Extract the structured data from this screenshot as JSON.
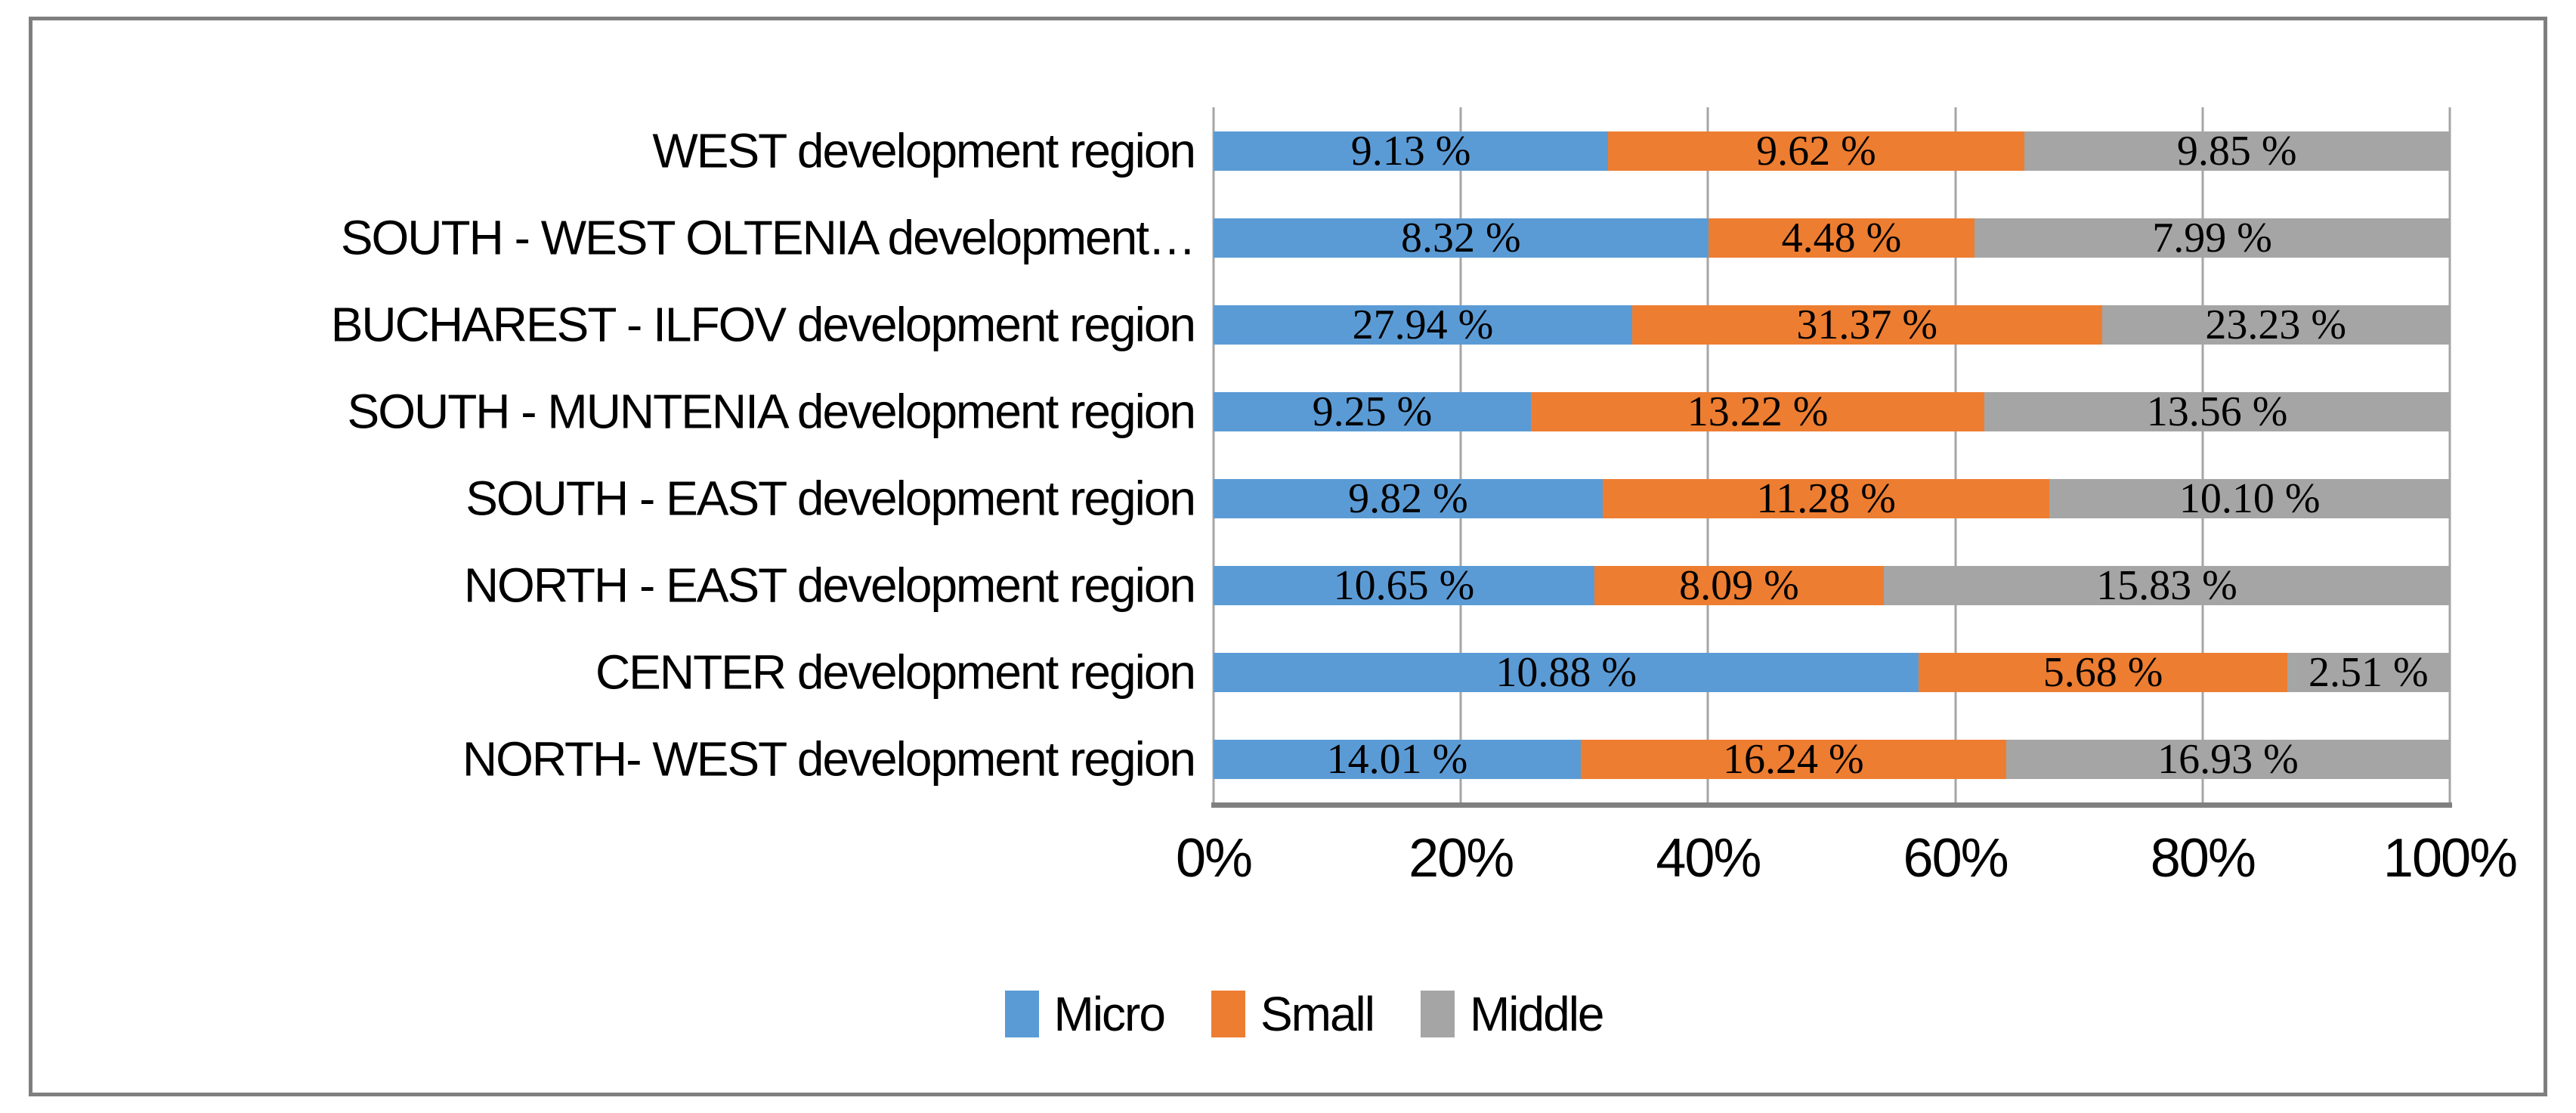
{
  "chart_data": {
    "type": "bar",
    "subtype": "stacked-100-horizontal",
    "title": "",
    "categories": [
      "WEST development region",
      "SOUTH - WEST OLTENIA development…",
      "BUCHAREST - ILFOV development region",
      "SOUTH - MUNTENIA development region",
      "SOUTH - EAST development region",
      "NORTH - EAST development region",
      "CENTER development region",
      "NORTH- WEST development region"
    ],
    "series": [
      {
        "name": "Micro",
        "color": "#5B9BD5",
        "values": [
          9.13,
          8.32,
          27.94,
          9.25,
          9.82,
          10.65,
          10.88,
          14.01
        ],
        "labels": [
          "9.13 %",
          "8.32 %",
          "27.94 %",
          "9.25 %",
          "9.82 %",
          "10.65 %",
          "10.88 %",
          "14.01 %"
        ]
      },
      {
        "name": "Small",
        "color": "#ED7D31",
        "values": [
          9.62,
          4.48,
          31.37,
          13.22,
          11.28,
          8.09,
          5.68,
          16.24
        ],
        "labels": [
          "9.62 %",
          "4.48 %",
          "31.37 %",
          "13.22 %",
          "11.28 %",
          "8.09 %",
          "5.68 %",
          "16.24 %"
        ]
      },
      {
        "name": "Middle",
        "color": "#A5A5A5",
        "values": [
          9.85,
          7.99,
          23.23,
          13.56,
          10.1,
          15.83,
          2.51,
          16.93
        ],
        "labels": [
          "9.85 %",
          "7.99 %",
          "23.23 %",
          "13.56 %",
          "10.10 %",
          "15.83 %",
          "2.51 %",
          "16.93 %"
        ]
      }
    ],
    "x_axis": {
      "ticks": [
        "0%",
        "20%",
        "40%",
        "60%",
        "80%",
        "100%"
      ],
      "range": [
        0,
        100
      ],
      "gridlines": true
    },
    "legend": {
      "position": "bottom",
      "entries": [
        "Micro",
        "Small",
        "Middle"
      ]
    }
  },
  "colors": {
    "background": "#FFFFFF",
    "frame_border": "#7F7F7F",
    "gridline": "#A6A6A6",
    "axis_line": "#808080",
    "label_text": "#000000"
  }
}
